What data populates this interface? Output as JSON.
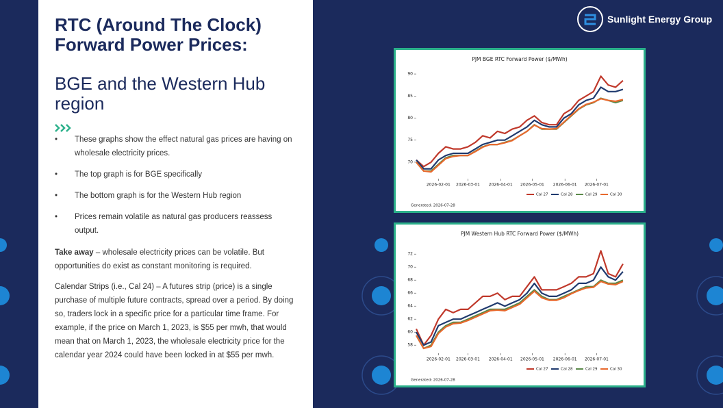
{
  "slide": {
    "title": "RTC (Around The Clock) Forward Power Prices:",
    "subtitle": "BGE and the Western Hub region",
    "bullets": [
      "These graphs show the effect natural gas prices are having on wholesale electricity prices.",
      "The top graph is for BGE specifically",
      "The bottom graph is for the Western Hub region",
      "Prices remain volatile as natural gas producers reassess output."
    ],
    "takeaway": {
      "label": "Take away",
      "text": "– wholesale electricity prices can be volatile. But opportunities do exist as constant monitoring is required."
    },
    "calendar_note": "Calendar Strips (i.e., Cal 24) – A futures strip (price) is a single purchase of multiple future contracts, spread over a period. By doing so, traders lock in a specific price for a particular time frame. For example, if the price on March 1, 2023, is $55 per mwh, that would mean that on March 1, 2023, the wholesale electricity price for the calendar year 2024 could have been locked in at $55 per mwh."
  },
  "logo": "Sunlight Energy Group",
  "chart_data": [
    {
      "type": "line",
      "title": "PJM BGE RTC Forward Power ($/MWh)",
      "footnote": "Generated: 2026-07-28",
      "legend": "bottom right",
      "x": [
        "2026-01-11",
        "2026-01-18",
        "2026-01-25",
        "2026-02-01",
        "2026-02-08",
        "2026-02-15",
        "2026-02-22",
        "2026-03-01",
        "2026-03-08",
        "2026-03-15",
        "2026-03-22",
        "2026-03-29",
        "2026-04-05",
        "2026-04-12",
        "2026-04-19",
        "2026-04-26",
        "2026-05-03",
        "2026-05-10",
        "2026-05-17",
        "2026-05-24",
        "2026-05-31",
        "2026-06-07",
        "2026-06-14",
        "2026-06-21",
        "2026-06-28",
        "2026-07-05",
        "2026-07-12",
        "2026-07-19",
        "2026-07-26"
      ],
      "xlim": [
        "2026-01-11",
        "2026-07-28"
      ],
      "xticks": [
        "2026-02-01",
        "2026-03-01",
        "2026-04-01",
        "2026-05-01",
        "2026-06-01",
        "2026-07-01"
      ],
      "ylim": [
        67.5,
        91.1
      ],
      "yticks": [
        70,
        75,
        80,
        85,
        90
      ],
      "series": [
        {
          "name": "Cal 27",
          "color": "#c0392b",
          "values": [
            70.5,
            69,
            70,
            72,
            73.5,
            73,
            73,
            73.5,
            74.5,
            76,
            75.5,
            77,
            76.5,
            77.5,
            78,
            79.5,
            80.5,
            79,
            78.5,
            78.5,
            81,
            82,
            84,
            85,
            86,
            89.5,
            87.5,
            87,
            88.5
          ]
        },
        {
          "name": "Cal 28",
          "color": "#1f3a6e",
          "values": [
            70.5,
            68.5,
            68.5,
            70.5,
            71.5,
            72,
            72,
            72,
            73,
            74,
            74.5,
            75,
            75,
            76,
            77,
            78,
            79.5,
            78.5,
            78,
            78,
            80,
            81,
            83,
            84,
            84.5,
            87,
            86,
            86,
            86.5
          ]
        },
        {
          "name": "Cal 29",
          "color": "#5b8a4a",
          "values": [
            70,
            68,
            68,
            69.5,
            71,
            71.5,
            71.5,
            71.5,
            72.5,
            73.5,
            74,
            74,
            74.5,
            75,
            76,
            77,
            78.5,
            77.5,
            77.5,
            77.5,
            79,
            80.5,
            82,
            83,
            83.5,
            84.5,
            84,
            83.5,
            84
          ]
        },
        {
          "name": "Cal 30",
          "color": "#e8692d",
          "values": [
            70,
            68,
            67.8,
            69.3,
            70.8,
            71.3,
            71.5,
            71.5,
            72.4,
            73.4,
            74,
            74,
            74.4,
            74.9,
            76,
            77,
            78.4,
            77.6,
            77.5,
            77.6,
            79.1,
            80.6,
            82.1,
            83.1,
            83.6,
            84.4,
            84,
            83.8,
            84.2
          ]
        }
      ]
    },
    {
      "type": "line",
      "title": "PJM Western Hub RTC Forward Power ($/MWh)",
      "footnote": "Generated: 2026-07-28",
      "legend": "bottom right",
      "x": [
        "2026-01-11",
        "2026-01-18",
        "2026-01-25",
        "2026-02-01",
        "2026-02-08",
        "2026-02-15",
        "2026-02-22",
        "2026-03-01",
        "2026-03-08",
        "2026-03-15",
        "2026-03-22",
        "2026-03-29",
        "2026-04-05",
        "2026-04-12",
        "2026-04-19",
        "2026-04-26",
        "2026-05-03",
        "2026-05-10",
        "2026-05-17",
        "2026-05-24",
        "2026-05-31",
        "2026-06-07",
        "2026-06-14",
        "2026-06-21",
        "2026-06-28",
        "2026-07-05",
        "2026-07-12",
        "2026-07-19",
        "2026-07-26"
      ],
      "xlim": [
        "2026-01-11",
        "2026-07-28"
      ],
      "xticks": [
        "2026-02-01",
        "2026-03-01",
        "2026-04-01",
        "2026-05-01",
        "2026-06-01",
        "2026-07-01"
      ],
      "ylim": [
        57.6,
        73.6
      ],
      "yticks": [
        58,
        60,
        62,
        64,
        66,
        68,
        70,
        72
      ],
      "series": [
        {
          "name": "Cal 27",
          "color": "#c0392b",
          "values": [
            60.5,
            58,
            59.5,
            62,
            63.5,
            63,
            63.5,
            63.5,
            64.5,
            65.5,
            65.5,
            66,
            65,
            65.5,
            65.5,
            67,
            68.5,
            66.5,
            66.5,
            66.5,
            67,
            67.5,
            68.5,
            68.5,
            69,
            72.5,
            69,
            68.5,
            70.5
          ]
        },
        {
          "name": "Cal 28",
          "color": "#1f3a6e",
          "values": [
            60,
            58,
            58.5,
            61,
            61.5,
            62,
            62,
            62.5,
            63,
            63.5,
            64,
            64.5,
            64,
            64.5,
            65,
            66,
            67.5,
            66,
            65.5,
            65.5,
            66,
            66.5,
            67.5,
            67.5,
            68,
            70,
            68.5,
            68,
            69.3
          ]
        },
        {
          "name": "Cal 29",
          "color": "#5b8a4a",
          "values": [
            59.5,
            57.5,
            58,
            60,
            61,
            61.5,
            61.5,
            62,
            62.5,
            63,
            63.5,
            63.5,
            63.5,
            64,
            64.5,
            65.5,
            66.5,
            65.5,
            65,
            65,
            65.5,
            66,
            66.5,
            67,
            67,
            68,
            67.5,
            67.5,
            68
          ]
        },
        {
          "name": "Cal 30",
          "color": "#e8692d",
          "values": [
            59.5,
            57.5,
            57.8,
            59.8,
            60.8,
            61.3,
            61.4,
            61.8,
            62.3,
            62.8,
            63.3,
            63.4,
            63.3,
            63.8,
            64.3,
            65.3,
            66.3,
            65.3,
            64.9,
            64.9,
            65.3,
            65.9,
            66.4,
            66.8,
            66.9,
            67.8,
            67.4,
            67.3,
            67.8
          ]
        }
      ]
    }
  ]
}
